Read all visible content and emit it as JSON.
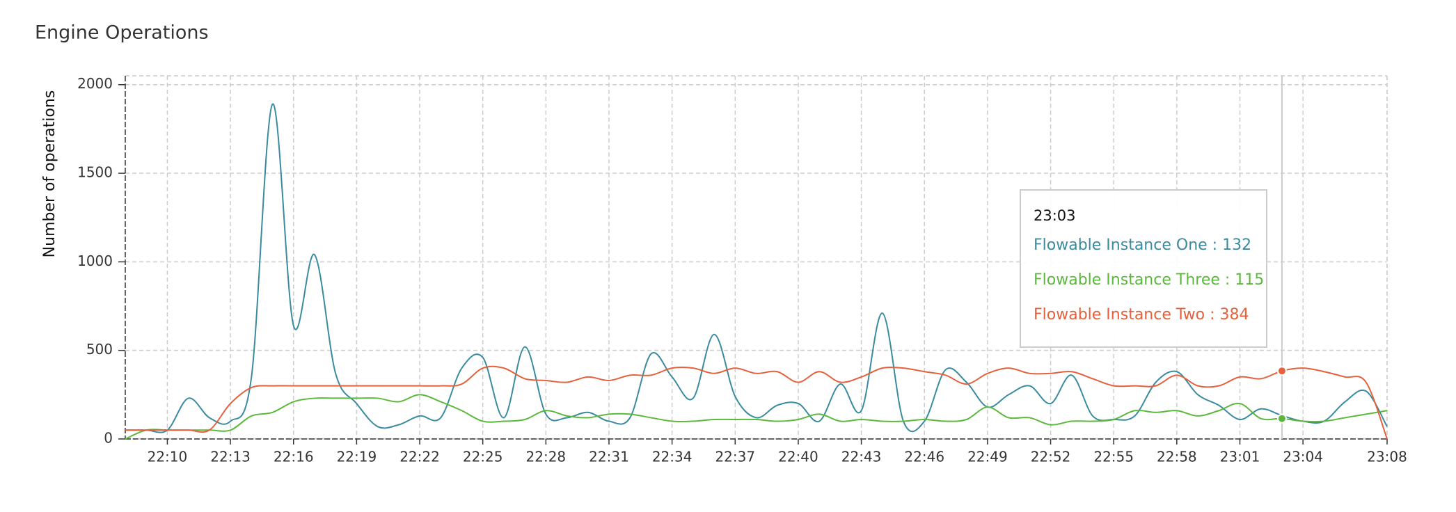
{
  "chart_data": {
    "type": "line",
    "title": "Engine Operations",
    "ylabel": "Number of operations",
    "x": [
      "22:08",
      "22:09",
      "22:10",
      "22:11",
      "22:12",
      "22:13",
      "22:14",
      "22:15",
      "22:16",
      "22:17",
      "22:18",
      "22:19",
      "22:20",
      "22:21",
      "22:22",
      "22:23",
      "22:24",
      "22:25",
      "22:26",
      "22:27",
      "22:28",
      "22:29",
      "22:30",
      "22:31",
      "22:32",
      "22:33",
      "22:34",
      "22:35",
      "22:36",
      "22:37",
      "22:38",
      "22:39",
      "22:40",
      "22:41",
      "22:42",
      "22:43",
      "22:44",
      "22:45",
      "22:46",
      "22:47",
      "22:48",
      "22:49",
      "22:50",
      "22:51",
      "22:52",
      "22:53",
      "22:54",
      "22:55",
      "22:56",
      "22:57",
      "22:58",
      "22:59",
      "23:00",
      "23:01",
      "23:02",
      "23:03",
      "23:04",
      "23:05",
      "23:06",
      "23:07",
      "23:08"
    ],
    "series": [
      {
        "name": "Flowable Instance One",
        "color": "#3a8ba0",
        "values": [
          50,
          50,
          50,
          230,
          120,
          100,
          350,
          1890,
          640,
          1040,
          370,
          200,
          70,
          80,
          130,
          120,
          400,
          460,
          120,
          520,
          140,
          120,
          150,
          100,
          120,
          480,
          350,
          230,
          590,
          240,
          120,
          190,
          200,
          100,
          310,
          160,
          710,
          100,
          100,
          390,
          320,
          180,
          250,
          300,
          200,
          360,
          130,
          110,
          130,
          320,
          380,
          250,
          190,
          110,
          170,
          132,
          100,
          100,
          210,
          270,
          70
        ]
      },
      {
        "name": "Flowable Instance Three",
        "color": "#5cb83c",
        "values": [
          0,
          50,
          50,
          50,
          50,
          50,
          130,
          150,
          210,
          230,
          230,
          230,
          230,
          210,
          250,
          210,
          160,
          100,
          100,
          110,
          160,
          130,
          120,
          140,
          140,
          120,
          100,
          100,
          110,
          110,
          110,
          100,
          110,
          140,
          100,
          110,
          100,
          100,
          110,
          100,
          110,
          180,
          120,
          120,
          80,
          100,
          100,
          110,
          160,
          150,
          160,
          130,
          160,
          200,
          115,
          115,
          100,
          100,
          120,
          140,
          160
        ]
      },
      {
        "name": "Flowable Instance Two",
        "color": "#e5603b",
        "values": [
          50,
          50,
          50,
          50,
          50,
          200,
          290,
          300,
          300,
          300,
          300,
          300,
          300,
          300,
          300,
          300,
          310,
          400,
          400,
          340,
          330,
          320,
          350,
          330,
          360,
          360,
          400,
          400,
          370,
          400,
          370,
          380,
          320,
          380,
          320,
          350,
          400,
          400,
          380,
          360,
          310,
          370,
          400,
          370,
          370,
          380,
          340,
          300,
          300,
          300,
          360,
          300,
          300,
          350,
          340,
          384,
          400,
          380,
          350,
          320,
          0
        ]
      }
    ],
    "ylim": [
      0,
      2050
    ],
    "yticks": [
      0,
      500,
      1000,
      1500,
      2000
    ],
    "xticks": [
      "22:10",
      "22:13",
      "22:16",
      "22:19",
      "22:22",
      "22:25",
      "22:28",
      "22:31",
      "22:34",
      "22:37",
      "22:40",
      "22:43",
      "22:46",
      "22:49",
      "22:52",
      "22:55",
      "22:58",
      "23:01",
      "23:04",
      "23:08"
    ],
    "grid": true,
    "tooltip": {
      "x": "23:03",
      "entries": [
        {
          "text": "Flowable Instance One : 132",
          "color": "#3a8ba0"
        },
        {
          "text": "Flowable Instance Three : 115",
          "color": "#5cb83c"
        },
        {
          "text": "Flowable Instance Two : 384",
          "color": "#e5603b"
        }
      ]
    }
  }
}
